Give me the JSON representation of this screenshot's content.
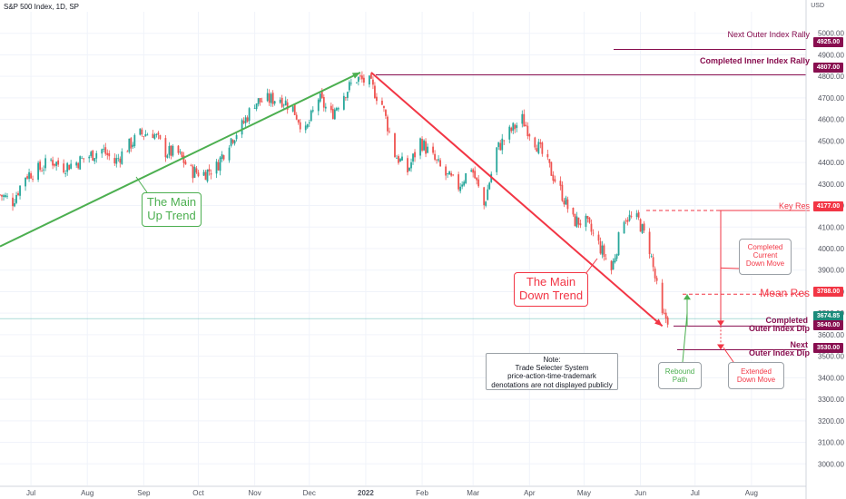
{
  "header": {
    "title": "S&P 500 Index, 1D, SP",
    "currency": "USD"
  },
  "chart_data": {
    "type": "candlestick",
    "y_axis": {
      "range": [
        2900,
        5100
      ],
      "ticks": [
        "5000.00",
        "4900.00",
        "4800.00",
        "4700.00",
        "4600.00",
        "4500.00",
        "4400.00",
        "4300.00",
        "4200.00",
        "4100.00",
        "4000.00",
        "3900.00",
        "3800.00",
        "3700.00",
        "3600.00",
        "3500.00",
        "3400.00",
        "3300.00",
        "3200.00",
        "3100.00",
        "3000.00"
      ]
    },
    "x_axis": {
      "range": [
        "2021-06-14",
        "2022-08-31"
      ],
      "ticks": [
        {
          "date": "2021-07-01",
          "label": "Jul"
        },
        {
          "date": "2021-08-01",
          "label": "Aug"
        },
        {
          "date": "2021-09-01",
          "label": "Sep"
        },
        {
          "date": "2021-10-01",
          "label": "Oct"
        },
        {
          "date": "2021-11-01",
          "label": "Nov"
        },
        {
          "date": "2021-12-01",
          "label": "Dec"
        },
        {
          "date": "2022-01-01",
          "label": "2022"
        },
        {
          "date": "2022-02-01",
          "label": "Feb"
        },
        {
          "date": "2022-03-01",
          "label": "Mar"
        },
        {
          "date": "2022-04-01",
          "label": "Apr"
        },
        {
          "date": "2022-05-01",
          "label": "May"
        },
        {
          "date": "2022-06-01",
          "label": "Jun"
        },
        {
          "date": "2022-07-01",
          "label": "Jul"
        },
        {
          "date": "2022-08-01",
          "label": "Aug"
        }
      ]
    },
    "price_series": [
      [
        "2021-06-14",
        4250
      ],
      [
        "2021-06-21",
        4220
      ],
      [
        "2021-06-28",
        4340
      ],
      [
        "2021-07-06",
        4370
      ],
      [
        "2021-07-12",
        4410
      ],
      [
        "2021-07-19",
        4380
      ],
      [
        "2021-07-26",
        4400
      ],
      [
        "2021-08-02",
        4430
      ],
      [
        "2021-08-09",
        4460
      ],
      [
        "2021-08-16",
        4400
      ],
      [
        "2021-08-23",
        4470
      ],
      [
        "2021-08-30",
        4530
      ],
      [
        "2021-09-06",
        4540
      ],
      [
        "2021-09-13",
        4450
      ],
      [
        "2021-09-20",
        4440
      ],
      [
        "2021-09-27",
        4360
      ],
      [
        "2021-10-04",
        4350
      ],
      [
        "2021-10-11",
        4380
      ],
      [
        "2021-10-18",
        4500
      ],
      [
        "2021-10-25",
        4570
      ],
      [
        "2021-11-01",
        4680
      ],
      [
        "2021-11-08",
        4690
      ],
      [
        "2021-11-15",
        4700
      ],
      [
        "2021-11-22",
        4650
      ],
      [
        "2021-11-29",
        4540
      ],
      [
        "2021-12-06",
        4700
      ],
      [
        "2021-12-13",
        4620
      ],
      [
        "2021-12-20",
        4720
      ],
      [
        "2021-12-27",
        4790
      ],
      [
        "2022-01-03",
        4770
      ],
      [
        "2022-01-10",
        4670
      ],
      [
        "2022-01-17",
        4440
      ],
      [
        "2022-01-24",
        4360
      ],
      [
        "2022-01-31",
        4500
      ],
      [
        "2022-02-07",
        4420
      ],
      [
        "2022-02-14",
        4340
      ],
      [
        "2022-02-21",
        4290
      ],
      [
        "2022-02-28",
        4380
      ],
      [
        "2022-03-07",
        4200
      ],
      [
        "2022-03-14",
        4460
      ],
      [
        "2022-03-21",
        4540
      ],
      [
        "2022-03-28",
        4600
      ],
      [
        "2022-04-04",
        4500
      ],
      [
        "2022-04-11",
        4390
      ],
      [
        "2022-04-18",
        4270
      ],
      [
        "2022-04-25",
        4130
      ],
      [
        "2022-05-02",
        4120
      ],
      [
        "2022-05-09",
        4020
      ],
      [
        "2022-05-16",
        3900
      ],
      [
        "2022-05-23",
        4150
      ],
      [
        "2022-05-31",
        4130
      ],
      [
        "2022-06-06",
        4000
      ],
      [
        "2022-06-13",
        3680
      ],
      [
        "2022-06-17",
        3674.85
      ]
    ],
    "last_price": "3674.85",
    "levels": [
      {
        "value": 4925,
        "label": "Next Outer Index Rally",
        "tag": "4925.00",
        "color": "#880e4f",
        "style": "solid"
      },
      {
        "value": 4807,
        "label": "Completed Inner Index Rally",
        "tag": "4807.00",
        "color": "#880e4f",
        "style": "solid"
      },
      {
        "value": 4177,
        "label": "Key Res",
        "tag": "4177.00",
        "color": "#f23645",
        "style": "dashed"
      },
      {
        "value": 3788,
        "label": "Mean Res",
        "tag": "3788.00",
        "color": "#f23645",
        "style": "dashed"
      },
      {
        "value": 3640,
        "label": [
          "Completed",
          "Outer Index Dip"
        ],
        "tag": "3640.00",
        "color": "#880e4f",
        "style": "solid"
      },
      {
        "value": 3530,
        "label": [
          "Next",
          "Outer Index Dip"
        ],
        "tag": "3530.00",
        "color": "#880e4f",
        "style": "solid"
      }
    ],
    "trendlines": [
      {
        "name": "up",
        "from": [
          "2021-06-14",
          4010
        ],
        "to": [
          "2021-12-29",
          4818
        ],
        "color": "#4caf50"
      },
      {
        "name": "down",
        "from": [
          "2022-01-04",
          4818
        ],
        "to": [
          "2022-06-13",
          3640
        ],
        "color": "#f23645"
      }
    ]
  },
  "annotations": {
    "up_trend": [
      "The Main",
      "Up Trend"
    ],
    "down_trend": [
      "The Main",
      "Down Trend"
    ],
    "current_move": [
      "Completed",
      "Current",
      "Down Move"
    ],
    "rebound": [
      "Rebound",
      "Path"
    ],
    "extended": [
      "Extended",
      "Down Move"
    ],
    "note": [
      "Note:",
      "Trade Selecter System",
      "price-action-time-trademark",
      "denotations are not displayed publicly"
    ]
  },
  "colors": {
    "up": "#26a69a",
    "down": "#ef5350",
    "green_line": "#4caf50",
    "red_line": "#f23645",
    "maroon": "#880e4f",
    "last_price": "#1b8a7a"
  }
}
